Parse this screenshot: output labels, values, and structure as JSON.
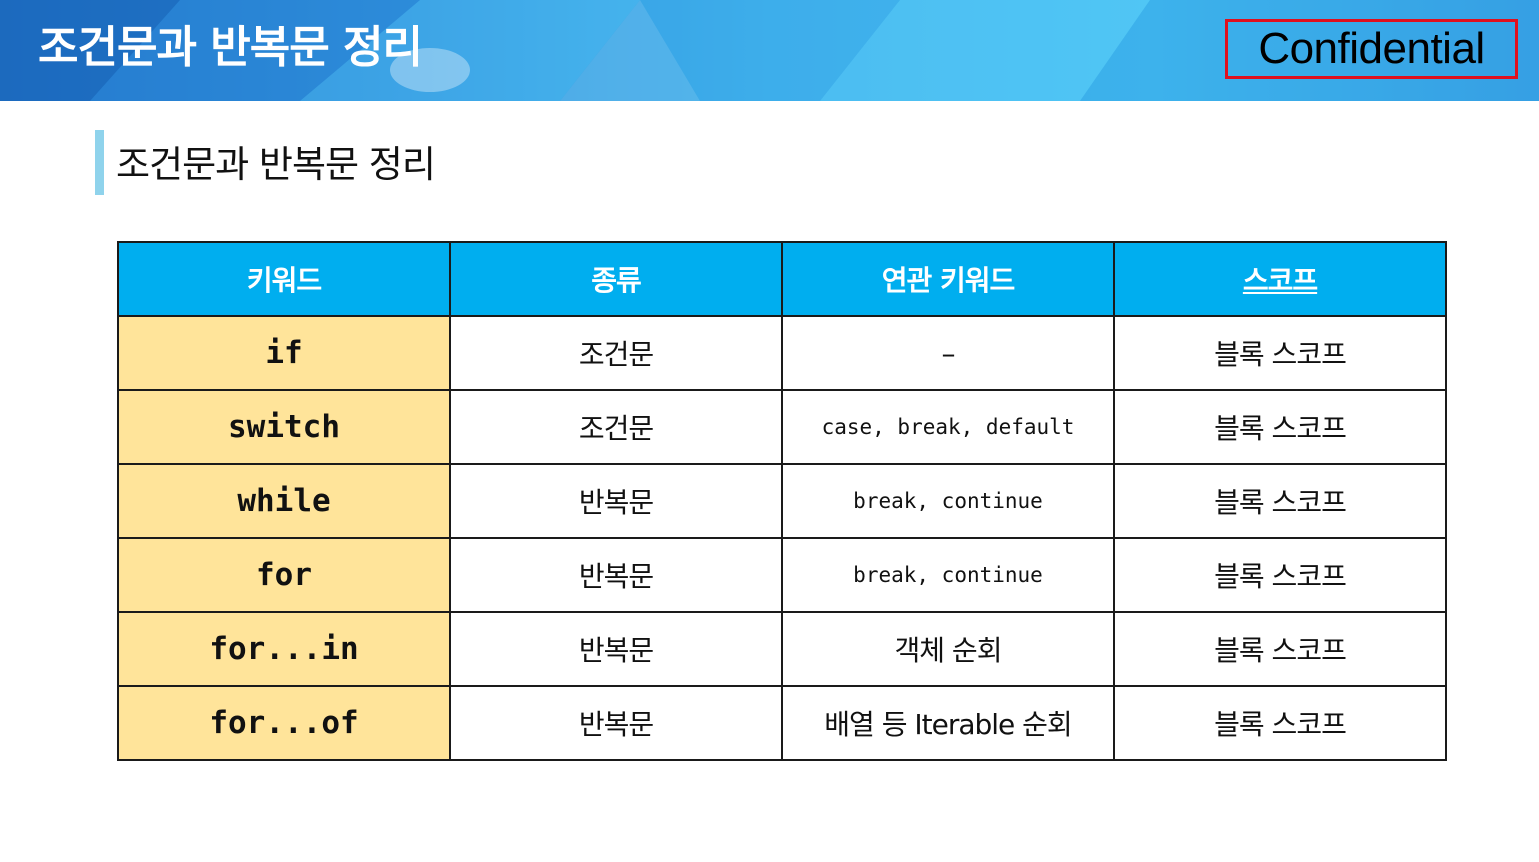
{
  "header": {
    "title": "조건문과 반복문 정리",
    "badge": "Confidential",
    "colors": {
      "banner_start": "#1e73c9",
      "banner_end": "#45c2f4",
      "badge_border": "#e0101e"
    }
  },
  "section": {
    "title": "조건문과 반복문 정리"
  },
  "table": {
    "headers": [
      "키워드",
      "종류",
      "연관 키워드",
      "스코프"
    ],
    "rows": [
      {
        "keyword": "if",
        "kind": "조건문",
        "related": "–",
        "scope": "블록 스코프"
      },
      {
        "keyword": "switch",
        "kind": "조건문",
        "related": "case, break, default",
        "scope": "블록 스코프"
      },
      {
        "keyword": "while",
        "kind": "반복문",
        "related": "break, continue",
        "scope": "블록 스코프"
      },
      {
        "keyword": "for",
        "kind": "반복문",
        "related": "break, continue",
        "scope": "블록 스코프"
      },
      {
        "keyword": "for...in",
        "kind": "반복문",
        "related": "객체 순회",
        "scope": "블록 스코프"
      },
      {
        "keyword": "for...of",
        "kind": "반복문",
        "related": "배열 등 Iterable 순회",
        "scope": "블록 스코프"
      }
    ],
    "colors": {
      "header_bg": "#00aeef",
      "keyword_bg": "#ffe49a"
    }
  }
}
